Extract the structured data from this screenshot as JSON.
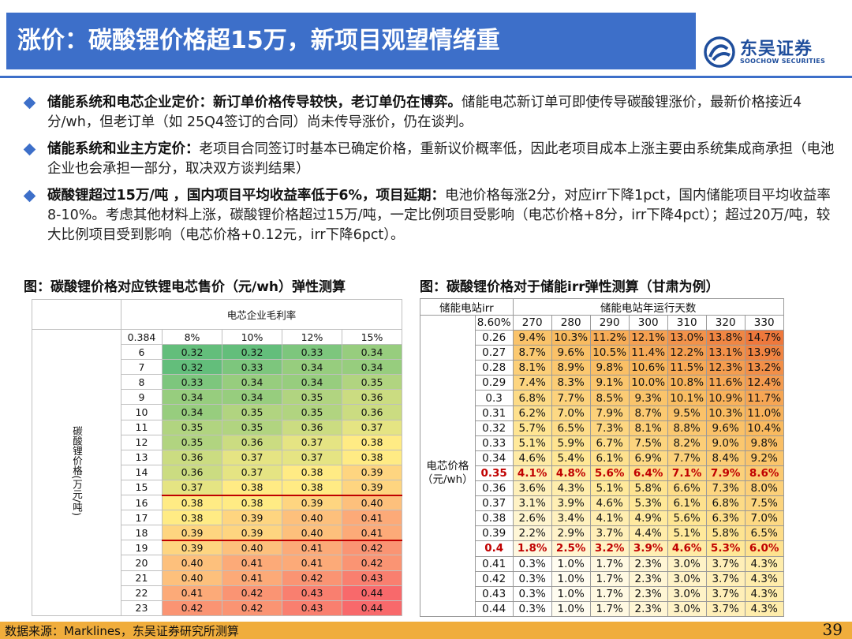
{
  "title": "涨价：碳酸锂价格超15万，新项目观望情绪重",
  "logo": {
    "cn": "东吴证券",
    "en": "SOOCHOW SECURITIES"
  },
  "bullets": [
    {
      "bold": "储能系统和电芯企业定价：新订单价格传导较快，老订单仍在博弈。",
      "text": "储能电芯新订单可即使传导碳酸锂涨价，最新价格接近4分/wh，但老订单（如 25Q4签订的合同）尚未传导涨价，仍在谈判。"
    },
    {
      "bold": "储能系统和业主方定价：",
      "text": "老项目合同签订时基本已确定价格，重新议价概率低，因此老项目成本上涨主要由系统集成商承担（电池企业也会承担一部分，取决双方谈判结果）"
    },
    {
      "bold": "碳酸锂超过15万/吨 ，国内项目平均收益率低于6%，项目延期：",
      "text": "电池价格每涨2分，对应irr下降1pct，国内储能项目平均收益率8-10%。考虑其他材料上涨，碳酸锂价格超过15万/吨，一定比例项目受影响（电芯价格+8分，irr下降4pct）；超过20万/吨，较大比例项目受到影响（电芯价格+0.12元，irr下降6pct）。"
    }
  ],
  "caption_left": "图：碳酸锂价格对应铁锂电芯售价（元/wh）弹性测算",
  "caption_right": "图：碳酸锂价格对于储能irr弹性测算（甘肃为例）",
  "table1": {
    "header": "电芯企业毛利率",
    "corner": "0.384",
    "cols": [
      "8%",
      "10%",
      "12%",
      "15%"
    ],
    "row_label": "碳酸锂价格(万元/吨)",
    "rows": [
      {
        "p": "6",
        "v": [
          "0.32",
          "0.32",
          "0.33",
          "0.34"
        ]
      },
      {
        "p": "7",
        "v": [
          "0.32",
          "0.33",
          "0.34",
          "0.34"
        ]
      },
      {
        "p": "8",
        "v": [
          "0.33",
          "0.34",
          "0.34",
          "0.35"
        ]
      },
      {
        "p": "9",
        "v": [
          "0.34",
          "0.34",
          "0.35",
          "0.36"
        ]
      },
      {
        "p": "10",
        "v": [
          "0.34",
          "0.35",
          "0.35",
          "0.36"
        ]
      },
      {
        "p": "11",
        "v": [
          "0.35",
          "0.35",
          "0.36",
          "0.37"
        ]
      },
      {
        "p": "12",
        "v": [
          "0.35",
          "0.36",
          "0.37",
          "0.38"
        ]
      },
      {
        "p": "13",
        "v": [
          "0.36",
          "0.37",
          "0.37",
          "0.38"
        ]
      },
      {
        "p": "14",
        "v": [
          "0.36",
          "0.37",
          "0.38",
          "0.39"
        ]
      },
      {
        "p": "15",
        "v": [
          "0.37",
          "0.38",
          "0.38",
          "0.39"
        ]
      },
      {
        "p": "16",
        "v": [
          "0.38",
          "0.38",
          "0.39",
          "0.40"
        ]
      },
      {
        "p": "17",
        "v": [
          "0.38",
          "0.39",
          "0.40",
          "0.41"
        ]
      },
      {
        "p": "18",
        "v": [
          "0.39",
          "0.39",
          "0.40",
          "0.41"
        ]
      },
      {
        "p": "19",
        "v": [
          "0.39",
          "0.40",
          "0.41",
          "0.42"
        ]
      },
      {
        "p": "20",
        "v": [
          "0.40",
          "0.41",
          "0.41",
          "0.42"
        ]
      },
      {
        "p": "21",
        "v": [
          "0.40",
          "0.41",
          "0.42",
          "0.43"
        ]
      },
      {
        "p": "22",
        "v": [
          "0.41",
          "0.42",
          "0.43",
          "0.44"
        ]
      },
      {
        "p": "23",
        "v": [
          "0.42",
          "0.42",
          "0.43",
          "0.44"
        ]
      }
    ]
  },
  "table2": {
    "corner": "储能电站irr",
    "header": "储能电站年运行天数",
    "base": "8.60%",
    "cols": [
      "270",
      "280",
      "290",
      "300",
      "310",
      "320",
      "330"
    ],
    "row_label": "电芯价格（元/wh）",
    "rows": [
      {
        "p": "0.26",
        "v": [
          "9.4%",
          "10.3%",
          "11.2%",
          "12.1%",
          "13.0%",
          "13.8%",
          "14.7%"
        ]
      },
      {
        "p": "0.27",
        "v": [
          "8.7%",
          "9.6%",
          "10.5%",
          "11.4%",
          "12.2%",
          "13.1%",
          "13.9%"
        ]
      },
      {
        "p": "0.28",
        "v": [
          "8.1%",
          "8.9%",
          "9.8%",
          "10.6%",
          "11.5%",
          "12.3%",
          "13.2%"
        ]
      },
      {
        "p": "0.29",
        "v": [
          "7.4%",
          "8.3%",
          "9.1%",
          "10.0%",
          "10.8%",
          "11.6%",
          "12.4%"
        ]
      },
      {
        "p": "0.3",
        "v": [
          "6.8%",
          "7.7%",
          "8.5%",
          "9.3%",
          "10.1%",
          "10.9%",
          "11.7%"
        ]
      },
      {
        "p": "0.31",
        "v": [
          "6.2%",
          "7.0%",
          "7.9%",
          "8.7%",
          "9.5%",
          "10.3%",
          "11.0%"
        ]
      },
      {
        "p": "0.32",
        "v": [
          "5.7%",
          "6.5%",
          "7.3%",
          "8.1%",
          "8.8%",
          "9.6%",
          "10.4%"
        ]
      },
      {
        "p": "0.33",
        "v": [
          "5.1%",
          "5.9%",
          "6.7%",
          "7.5%",
          "8.2%",
          "9.0%",
          "9.8%"
        ]
      },
      {
        "p": "0.34",
        "v": [
          "4.6%",
          "5.4%",
          "6.1%",
          "6.9%",
          "7.7%",
          "8.4%",
          "9.2%"
        ]
      },
      {
        "p": "0.35",
        "v": [
          "4.1%",
          "4.8%",
          "5.6%",
          "6.4%",
          "7.1%",
          "7.9%",
          "8.6%"
        ],
        "hl": true
      },
      {
        "p": "0.36",
        "v": [
          "3.6%",
          "4.3%",
          "5.1%",
          "5.8%",
          "6.6%",
          "7.3%",
          "8.0%"
        ]
      },
      {
        "p": "0.37",
        "v": [
          "3.1%",
          "3.9%",
          "4.6%",
          "5.3%",
          "6.1%",
          "6.8%",
          "7.5%"
        ]
      },
      {
        "p": "0.38",
        "v": [
          "2.6%",
          "3.4%",
          "4.1%",
          "4.9%",
          "5.6%",
          "6.3%",
          "7.0%"
        ]
      },
      {
        "p": "0.39",
        "v": [
          "2.2%",
          "2.9%",
          "3.7%",
          "4.4%",
          "5.1%",
          "5.8%",
          "6.5%"
        ]
      },
      {
        "p": "0.4",
        "v": [
          "1.8%",
          "2.5%",
          "3.2%",
          "3.9%",
          "4.6%",
          "5.3%",
          "6.0%"
        ],
        "hl": true
      },
      {
        "p": "0.41",
        "v": [
          "0.3%",
          "1.0%",
          "1.7%",
          "2.3%",
          "3.0%",
          "3.7%",
          "4.3%"
        ]
      },
      {
        "p": "0.42",
        "v": [
          "0.3%",
          "1.0%",
          "1.7%",
          "2.3%",
          "3.0%",
          "3.7%",
          "4.3%"
        ]
      },
      {
        "p": "0.43",
        "v": [
          "0.3%",
          "1.0%",
          "1.7%",
          "2.3%",
          "3.0%",
          "3.7%",
          "4.3%"
        ]
      },
      {
        "p": "0.44",
        "v": [
          "0.3%",
          "1.0%",
          "1.7%",
          "2.3%",
          "3.0%",
          "3.7%",
          "4.3%"
        ]
      }
    ]
  },
  "footer": {
    "source": "数据来源：Marklines，东吴证券研究所测算",
    "page": "39"
  }
}
